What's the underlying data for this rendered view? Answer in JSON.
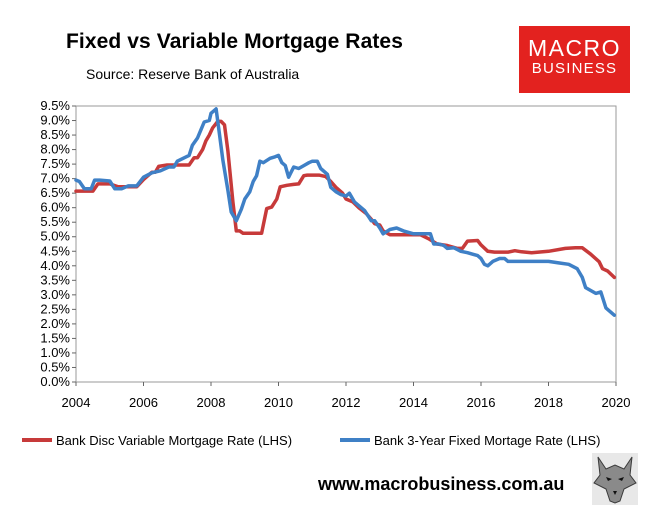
{
  "header": {
    "title": "Fixed vs Variable Mortgage Rates",
    "subtitle": "Source: Reserve Bank of Australia"
  },
  "logo": {
    "line1": "MACRO",
    "line2": "BUSINESS"
  },
  "footer": {
    "url": "www.macrobusiness.com.au"
  },
  "colors": {
    "variable": "#c73a3a",
    "fixed": "#3f80c6",
    "logo_bg": "#e3221f"
  },
  "chart_data": {
    "type": "line",
    "title": "Fixed vs Variable Mortgage Rates",
    "xlabel": "",
    "ylabel": "",
    "xlim": [
      2004,
      2020
    ],
    "ylim": [
      0,
      9.5
    ],
    "x_ticks": [
      "2004",
      "2006",
      "2008",
      "2010",
      "2012",
      "2014",
      "2016",
      "2018",
      "2020"
    ],
    "y_ticks": [
      "0.0%",
      "0.5%",
      "1.0%",
      "1.5%",
      "2.0%",
      "2.5%",
      "3.0%",
      "3.5%",
      "4.0%",
      "4.5%",
      "5.0%",
      "5.5%",
      "6.0%",
      "6.5%",
      "7.0%",
      "7.5%",
      "8.0%",
      "8.5%",
      "9.0%",
      "9.5%"
    ],
    "legend_position": "bottom",
    "series": [
      {
        "name": "Bank Disc Variable Mortgage Rate (LHS)",
        "color": "#c73a3a",
        "points": [
          [
            2004.0,
            6.57
          ],
          [
            2004.5,
            6.57
          ],
          [
            2004.65,
            6.82
          ],
          [
            2005.0,
            6.82
          ],
          [
            2005.25,
            6.72
          ],
          [
            2005.8,
            6.72
          ],
          [
            2006.0,
            6.97
          ],
          [
            2006.25,
            7.22
          ],
          [
            2006.35,
            7.22
          ],
          [
            2006.45,
            7.42
          ],
          [
            2006.7,
            7.47
          ],
          [
            2006.95,
            7.47
          ],
          [
            2007.0,
            7.47
          ],
          [
            2007.35,
            7.47
          ],
          [
            2007.5,
            7.72
          ],
          [
            2007.6,
            7.72
          ],
          [
            2007.75,
            8.0
          ],
          [
            2007.85,
            8.3
          ],
          [
            2007.95,
            8.5
          ],
          [
            2008.05,
            8.75
          ],
          [
            2008.2,
            8.97
          ],
          [
            2008.3,
            8.97
          ],
          [
            2008.4,
            8.85
          ],
          [
            2008.5,
            7.95
          ],
          [
            2008.65,
            6.2
          ],
          [
            2008.75,
            5.2
          ],
          [
            2008.85,
            5.2
          ],
          [
            2008.95,
            5.12
          ],
          [
            2009.5,
            5.12
          ],
          [
            2009.65,
            5.97
          ],
          [
            2009.8,
            6.02
          ],
          [
            2009.95,
            6.3
          ],
          [
            2010.05,
            6.72
          ],
          [
            2010.25,
            6.77
          ],
          [
            2010.45,
            6.8
          ],
          [
            2010.6,
            6.82
          ],
          [
            2010.75,
            7.1
          ],
          [
            2010.85,
            7.12
          ],
          [
            2011.2,
            7.12
          ],
          [
            2011.4,
            7.07
          ],
          [
            2011.55,
            6.9
          ],
          [
            2011.7,
            6.7
          ],
          [
            2011.9,
            6.5
          ],
          [
            2012.0,
            6.3
          ],
          [
            2012.2,
            6.2
          ],
          [
            2012.4,
            5.98
          ],
          [
            2012.6,
            5.8
          ],
          [
            2012.75,
            5.6
          ],
          [
            2012.85,
            5.45
          ],
          [
            2013.0,
            5.4
          ],
          [
            2013.1,
            5.2
          ],
          [
            2013.3,
            5.07
          ],
          [
            2014.2,
            5.07
          ],
          [
            2014.45,
            4.93
          ],
          [
            2014.7,
            4.75
          ],
          [
            2015.0,
            4.7
          ],
          [
            2015.3,
            4.6
          ],
          [
            2015.45,
            4.6
          ],
          [
            2015.6,
            4.85
          ],
          [
            2015.9,
            4.87
          ],
          [
            2016.0,
            4.72
          ],
          [
            2016.2,
            4.5
          ],
          [
            2016.4,
            4.47
          ],
          [
            2016.8,
            4.47
          ],
          [
            2017.0,
            4.52
          ],
          [
            2017.2,
            4.48
          ],
          [
            2017.5,
            4.45
          ],
          [
            2018.0,
            4.5
          ],
          [
            2018.5,
            4.6
          ],
          [
            2018.8,
            4.62
          ],
          [
            2019.0,
            4.62
          ],
          [
            2019.25,
            4.4
          ],
          [
            2019.5,
            4.14
          ],
          [
            2019.6,
            3.9
          ],
          [
            2019.75,
            3.82
          ],
          [
            2019.95,
            3.6
          ]
        ]
      },
      {
        "name": "Bank 3-Year Fixed Mortage Rate (LHS)",
        "color": "#3f80c6",
        "points": [
          [
            2004.0,
            6.95
          ],
          [
            2004.1,
            6.9
          ],
          [
            2004.25,
            6.65
          ],
          [
            2004.45,
            6.65
          ],
          [
            2004.55,
            6.95
          ],
          [
            2004.7,
            6.95
          ],
          [
            2005.0,
            6.92
          ],
          [
            2005.15,
            6.65
          ],
          [
            2005.35,
            6.65
          ],
          [
            2005.55,
            6.75
          ],
          [
            2005.8,
            6.75
          ],
          [
            2006.0,
            7.05
          ],
          [
            2006.25,
            7.2
          ],
          [
            2006.5,
            7.27
          ],
          [
            2006.75,
            7.4
          ],
          [
            2006.9,
            7.4
          ],
          [
            2007.0,
            7.6
          ],
          [
            2007.35,
            7.8
          ],
          [
            2007.45,
            8.15
          ],
          [
            2007.6,
            8.4
          ],
          [
            2007.8,
            8.95
          ],
          [
            2007.95,
            9.0
          ],
          [
            2008.0,
            9.25
          ],
          [
            2008.15,
            9.4
          ],
          [
            2008.25,
            8.55
          ],
          [
            2008.35,
            7.65
          ],
          [
            2008.5,
            6.6
          ],
          [
            2008.6,
            5.85
          ],
          [
            2008.75,
            5.55
          ],
          [
            2008.9,
            5.95
          ],
          [
            2009.0,
            6.3
          ],
          [
            2009.15,
            6.55
          ],
          [
            2009.25,
            6.9
          ],
          [
            2009.35,
            7.1
          ],
          [
            2009.45,
            7.6
          ],
          [
            2009.55,
            7.55
          ],
          [
            2009.75,
            7.7
          ],
          [
            2009.9,
            7.75
          ],
          [
            2010.0,
            7.8
          ],
          [
            2010.1,
            7.55
          ],
          [
            2010.2,
            7.45
          ],
          [
            2010.3,
            7.05
          ],
          [
            2010.45,
            7.4
          ],
          [
            2010.6,
            7.35
          ],
          [
            2010.75,
            7.45
          ],
          [
            2010.9,
            7.55
          ],
          [
            2011.0,
            7.6
          ],
          [
            2011.15,
            7.6
          ],
          [
            2011.25,
            7.35
          ],
          [
            2011.45,
            7.15
          ],
          [
            2011.55,
            6.7
          ],
          [
            2011.7,
            6.55
          ],
          [
            2011.85,
            6.45
          ],
          [
            2012.0,
            6.4
          ],
          [
            2012.1,
            6.5
          ],
          [
            2012.25,
            6.2
          ],
          [
            2012.45,
            6.0
          ],
          [
            2012.55,
            5.9
          ],
          [
            2012.75,
            5.55
          ],
          [
            2012.85,
            5.55
          ],
          [
            2013.0,
            5.3
          ],
          [
            2013.1,
            5.1
          ],
          [
            2013.3,
            5.25
          ],
          [
            2013.5,
            5.3
          ],
          [
            2013.7,
            5.2
          ],
          [
            2014.0,
            5.1
          ],
          [
            2014.5,
            5.1
          ],
          [
            2014.6,
            4.75
          ],
          [
            2014.75,
            4.75
          ],
          [
            2014.9,
            4.7
          ],
          [
            2015.0,
            4.6
          ],
          [
            2015.2,
            4.62
          ],
          [
            2015.4,
            4.5
          ],
          [
            2015.6,
            4.45
          ],
          [
            2015.75,
            4.4
          ],
          [
            2015.9,
            4.35
          ],
          [
            2016.0,
            4.25
          ],
          [
            2016.1,
            4.05
          ],
          [
            2016.2,
            4.0
          ],
          [
            2016.35,
            4.15
          ],
          [
            2016.55,
            4.25
          ],
          [
            2016.7,
            4.25
          ],
          [
            2016.8,
            4.15
          ],
          [
            2017.0,
            4.15
          ],
          [
            2017.5,
            4.15
          ],
          [
            2018.0,
            4.15
          ],
          [
            2018.3,
            4.1
          ],
          [
            2018.6,
            4.05
          ],
          [
            2018.85,
            3.9
          ],
          [
            2019.0,
            3.6
          ],
          [
            2019.1,
            3.25
          ],
          [
            2019.25,
            3.15
          ],
          [
            2019.4,
            3.05
          ],
          [
            2019.55,
            3.1
          ],
          [
            2019.7,
            2.55
          ],
          [
            2019.8,
            2.45
          ],
          [
            2019.95,
            2.3
          ]
        ]
      }
    ]
  }
}
